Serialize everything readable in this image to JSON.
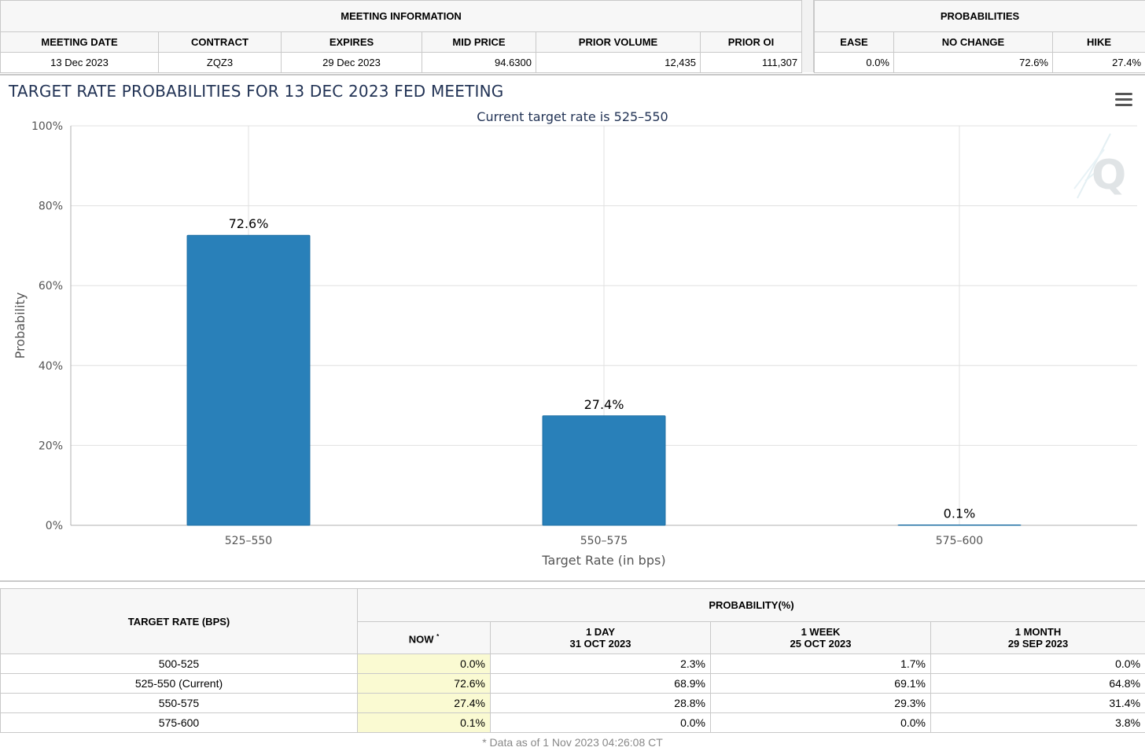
{
  "meeting_info": {
    "group_label": "MEETING INFORMATION",
    "headers": [
      "MEETING DATE",
      "CONTRACT",
      "EXPIRES",
      "MID PRICE",
      "PRIOR VOLUME",
      "PRIOR OI"
    ],
    "values": [
      "13 Dec 2023",
      "ZQZ3",
      "29 Dec 2023",
      "94.6300",
      "12,435",
      "111,307"
    ]
  },
  "probabilities": {
    "group_label": "PROBABILITIES",
    "headers": [
      "EASE",
      "NO CHANGE",
      "HIKE"
    ],
    "values": [
      "0.0%",
      "72.6%",
      "27.4%"
    ]
  },
  "chart_title": "TARGET RATE PROBABILITIES FOR 13 DEC 2023 FED MEETING",
  "chart_data": {
    "type": "bar",
    "title": "",
    "subtitle": "Current target rate is 525–550",
    "categories": [
      "525–550",
      "550–575",
      "575–600"
    ],
    "values": [
      72.6,
      27.4,
      0.1
    ],
    "data_labels": [
      "72.6%",
      "27.4%",
      "0.1%"
    ],
    "xlabel": "Target Rate (in bps)",
    "ylabel": "Probability",
    "ylim": [
      0,
      100
    ],
    "yticks": [
      0,
      20,
      40,
      60,
      80,
      100
    ],
    "ytick_labels": [
      "0%",
      "20%",
      "40%",
      "60%",
      "80%",
      "100%"
    ],
    "grid": true,
    "bar_color": "#2980b9"
  },
  "prob_table": {
    "row_header": "TARGET RATE (BPS)",
    "group_header": "PROBABILITY(%)",
    "columns": [
      {
        "line1": "NOW",
        "line2": "",
        "marker": "*"
      },
      {
        "line1": "1 DAY",
        "line2": "31 OCT 2023",
        "marker": ""
      },
      {
        "line1": "1 WEEK",
        "line2": "25 OCT 2023",
        "marker": ""
      },
      {
        "line1": "1 MONTH",
        "line2": "29 SEP 2023",
        "marker": ""
      }
    ],
    "rows": [
      {
        "rate": "500-525",
        "values": [
          "0.0%",
          "2.3%",
          "1.7%",
          "0.0%"
        ]
      },
      {
        "rate": "525-550 (Current)",
        "values": [
          "72.6%",
          "68.9%",
          "69.1%",
          "64.8%"
        ]
      },
      {
        "rate": "550-575",
        "values": [
          "27.4%",
          "28.8%",
          "29.3%",
          "31.4%"
        ]
      },
      {
        "rate": "575-600",
        "values": [
          "0.1%",
          "0.0%",
          "0.0%",
          "3.8%"
        ]
      }
    ]
  },
  "footnote": "* Data as of 1 Nov 2023 04:26:08 CT",
  "icons": {
    "menu": "hamburger-menu-icon",
    "watermark": "q-logo-watermark"
  }
}
